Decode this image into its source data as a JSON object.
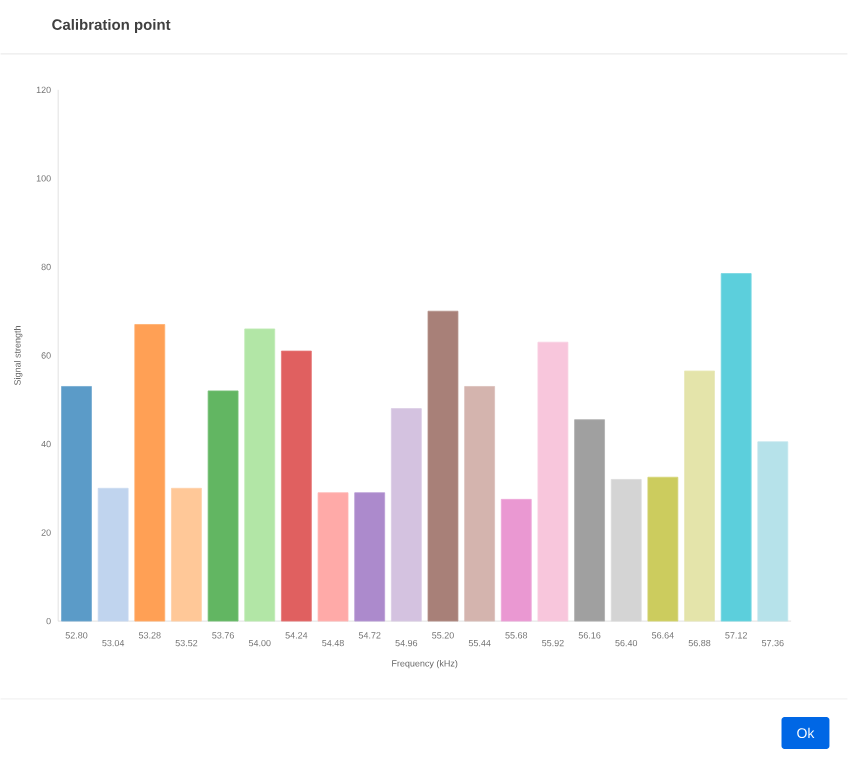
{
  "chart_data": {
    "type": "bar",
    "title": "Calibration point",
    "xlabel": "Frequency (kHz)",
    "ylabel": "Signal strength",
    "categories": [
      "52.80",
      "53.04",
      "53.28",
      "53.52",
      "53.76",
      "54.00",
      "54.24",
      "54.48",
      "54.72",
      "54.96",
      "55.20",
      "55.44",
      "55.68",
      "55.92",
      "56.16",
      "56.40",
      "56.64",
      "56.88",
      "57.12",
      "57.36"
    ],
    "values": [
      53,
      30,
      67,
      30,
      52,
      66,
      61,
      29,
      29,
      48,
      70,
      53,
      27.5,
      63,
      45.5,
      32,
      32.5,
      56.5,
      78.5,
      40.5
    ],
    "colors": [
      "#5b9bc8",
      "#c0d4ee",
      "#ffa055",
      "#ffc898",
      "#62b662",
      "#b2e6a6",
      "#e06060",
      "#ffaaa8",
      "#ac8acc",
      "#d4c2e0",
      "#a88078",
      "#d4b4ae",
      "#ea98d2",
      "#f8c6dc",
      "#a0a0a0",
      "#d4d4d4",
      "#cccc5e",
      "#e4e4aa",
      "#5ccfdc",
      "#b6e2ea"
    ],
    "ylim": [
      0,
      120
    ],
    "yticks": [
      0,
      20,
      40,
      60,
      80,
      100,
      120
    ],
    "grid": false,
    "annotations": [
      "Ok"
    ]
  }
}
